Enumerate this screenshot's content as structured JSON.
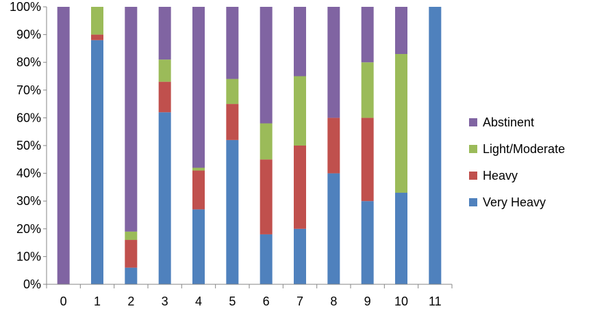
{
  "chart_data": {
    "type": "bar",
    "stacked": true,
    "percent_stacked": true,
    "title": "",
    "xlabel": "",
    "ylabel": "",
    "categories": [
      "0",
      "1",
      "2",
      "3",
      "4",
      "5",
      "6",
      "7",
      "8",
      "9",
      "10",
      "11"
    ],
    "ylim": [
      0,
      100
    ],
    "y_ticks": [
      "0%",
      "10%",
      "20%",
      "30%",
      "40%",
      "50%",
      "60%",
      "70%",
      "80%",
      "90%",
      "100%"
    ],
    "grid": false,
    "legend_position": "right",
    "series": [
      {
        "name": "Very Heavy",
        "color": "#4F81BD",
        "values": [
          0,
          88,
          6,
          62,
          27,
          52,
          18,
          20,
          40,
          30,
          33,
          100
        ]
      },
      {
        "name": "Heavy",
        "color": "#C0504D",
        "values": [
          0,
          2,
          10,
          11,
          14,
          13,
          27,
          30,
          20,
          30,
          0,
          0
        ]
      },
      {
        "name": "Light/Moderate",
        "color": "#9BBB59",
        "values": [
          0,
          10,
          3,
          8,
          1,
          9,
          13,
          25,
          0,
          20,
          50,
          0
        ]
      },
      {
        "name": "Abstinent",
        "color": "#8064A2",
        "values": [
          100,
          0,
          81,
          19,
          58,
          26,
          42,
          25,
          40,
          20,
          17,
          0
        ]
      }
    ],
    "legend_order": [
      "Abstinent",
      "Light/Moderate",
      "Heavy",
      "Very Heavy"
    ]
  }
}
